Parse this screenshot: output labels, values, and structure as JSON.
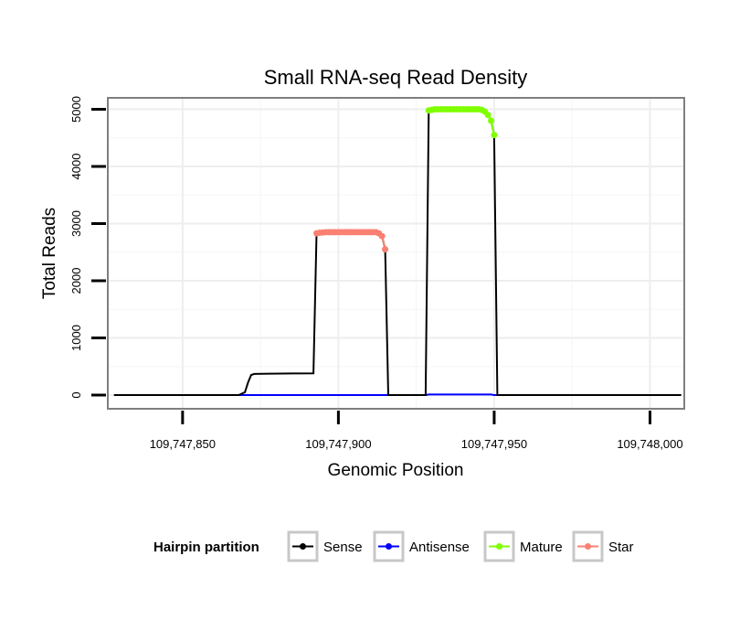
{
  "chart_data": {
    "type": "line",
    "title": "Small RNA-seq Read Density",
    "xlabel": "Genomic Position",
    "ylabel": "Total Reads",
    "xlim": [
      109747826,
      109748011
    ],
    "ylim": [
      -240,
      5200
    ],
    "x_ticks": [
      109747850,
      109747900,
      109747950,
      109748000
    ],
    "x_tick_labels": [
      "109,747,850",
      "109,747,900",
      "109,747,950",
      "109,748,000"
    ],
    "y_ticks": [
      0,
      1000,
      2000,
      3000,
      4000,
      5000
    ],
    "y_tick_labels": [
      "0",
      "1000",
      "2000",
      "3000",
      "4000",
      "5000"
    ],
    "legend": {
      "title": "Hairpin partition",
      "position": "bottom",
      "entries": [
        {
          "label": "Sense",
          "color": "#000000"
        },
        {
          "label": "Antisense",
          "color": "#0000ff"
        },
        {
          "label": "Mature",
          "color": "#7fff00"
        },
        {
          "label": "Star",
          "color": "#fa8072"
        }
      ]
    },
    "series": [
      {
        "name": "Sense",
        "color": "#000000",
        "markers": false,
        "x": [
          109747828,
          109747868,
          109747870,
          109747871,
          109747872,
          109747873,
          109747878,
          109747885,
          109747892,
          109747893,
          109747894,
          109747912,
          109747914,
          109747915,
          109747916,
          109747928,
          109747929,
          109747930,
          109747947,
          109747949,
          109747950,
          109747951,
          109747955,
          109748010
        ],
        "y": [
          0,
          0,
          50,
          220,
          350,
          370,
          375,
          378,
          380,
          2830,
          2850,
          2850,
          2780,
          2550,
          0,
          0,
          4980,
          5000,
          5000,
          4800,
          4550,
          0,
          0,
          0
        ]
      },
      {
        "name": "Antisense",
        "color": "#0000ff",
        "markers": false,
        "x": [
          109747828,
          109747928,
          109747929,
          109747949,
          109747950,
          109748010
        ],
        "y": [
          0,
          0,
          10,
          10,
          0,
          0
        ]
      },
      {
        "name": "Star",
        "color": "#fa8072",
        "markers": true,
        "x": [
          109747893,
          109747894,
          109747895,
          109747896,
          109747897,
          109747898,
          109747899,
          109747900,
          109747901,
          109747902,
          109747903,
          109747904,
          109747905,
          109747906,
          109747907,
          109747908,
          109747909,
          109747910,
          109747911,
          109747912,
          109747913,
          109747914,
          109747915
        ],
        "y": [
          2830,
          2840,
          2845,
          2850,
          2850,
          2850,
          2850,
          2850,
          2850,
          2850,
          2850,
          2850,
          2850,
          2850,
          2850,
          2850,
          2850,
          2850,
          2850,
          2850,
          2830,
          2780,
          2550
        ]
      },
      {
        "name": "Mature",
        "color": "#7fff00",
        "markers": true,
        "x": [
          109747929,
          109747930,
          109747931,
          109747932,
          109747933,
          109747934,
          109747935,
          109747936,
          109747937,
          109747938,
          109747939,
          109747940,
          109747941,
          109747942,
          109747943,
          109747944,
          109747945,
          109747946,
          109747947,
          109747948,
          109747949,
          109747950
        ],
        "y": [
          4980,
          4990,
          5000,
          5000,
          5000,
          5000,
          5000,
          5000,
          5000,
          5000,
          5000,
          5000,
          5000,
          5000,
          5000,
          5000,
          5000,
          4990,
          4960,
          4900,
          4800,
          4550
        ]
      }
    ]
  }
}
